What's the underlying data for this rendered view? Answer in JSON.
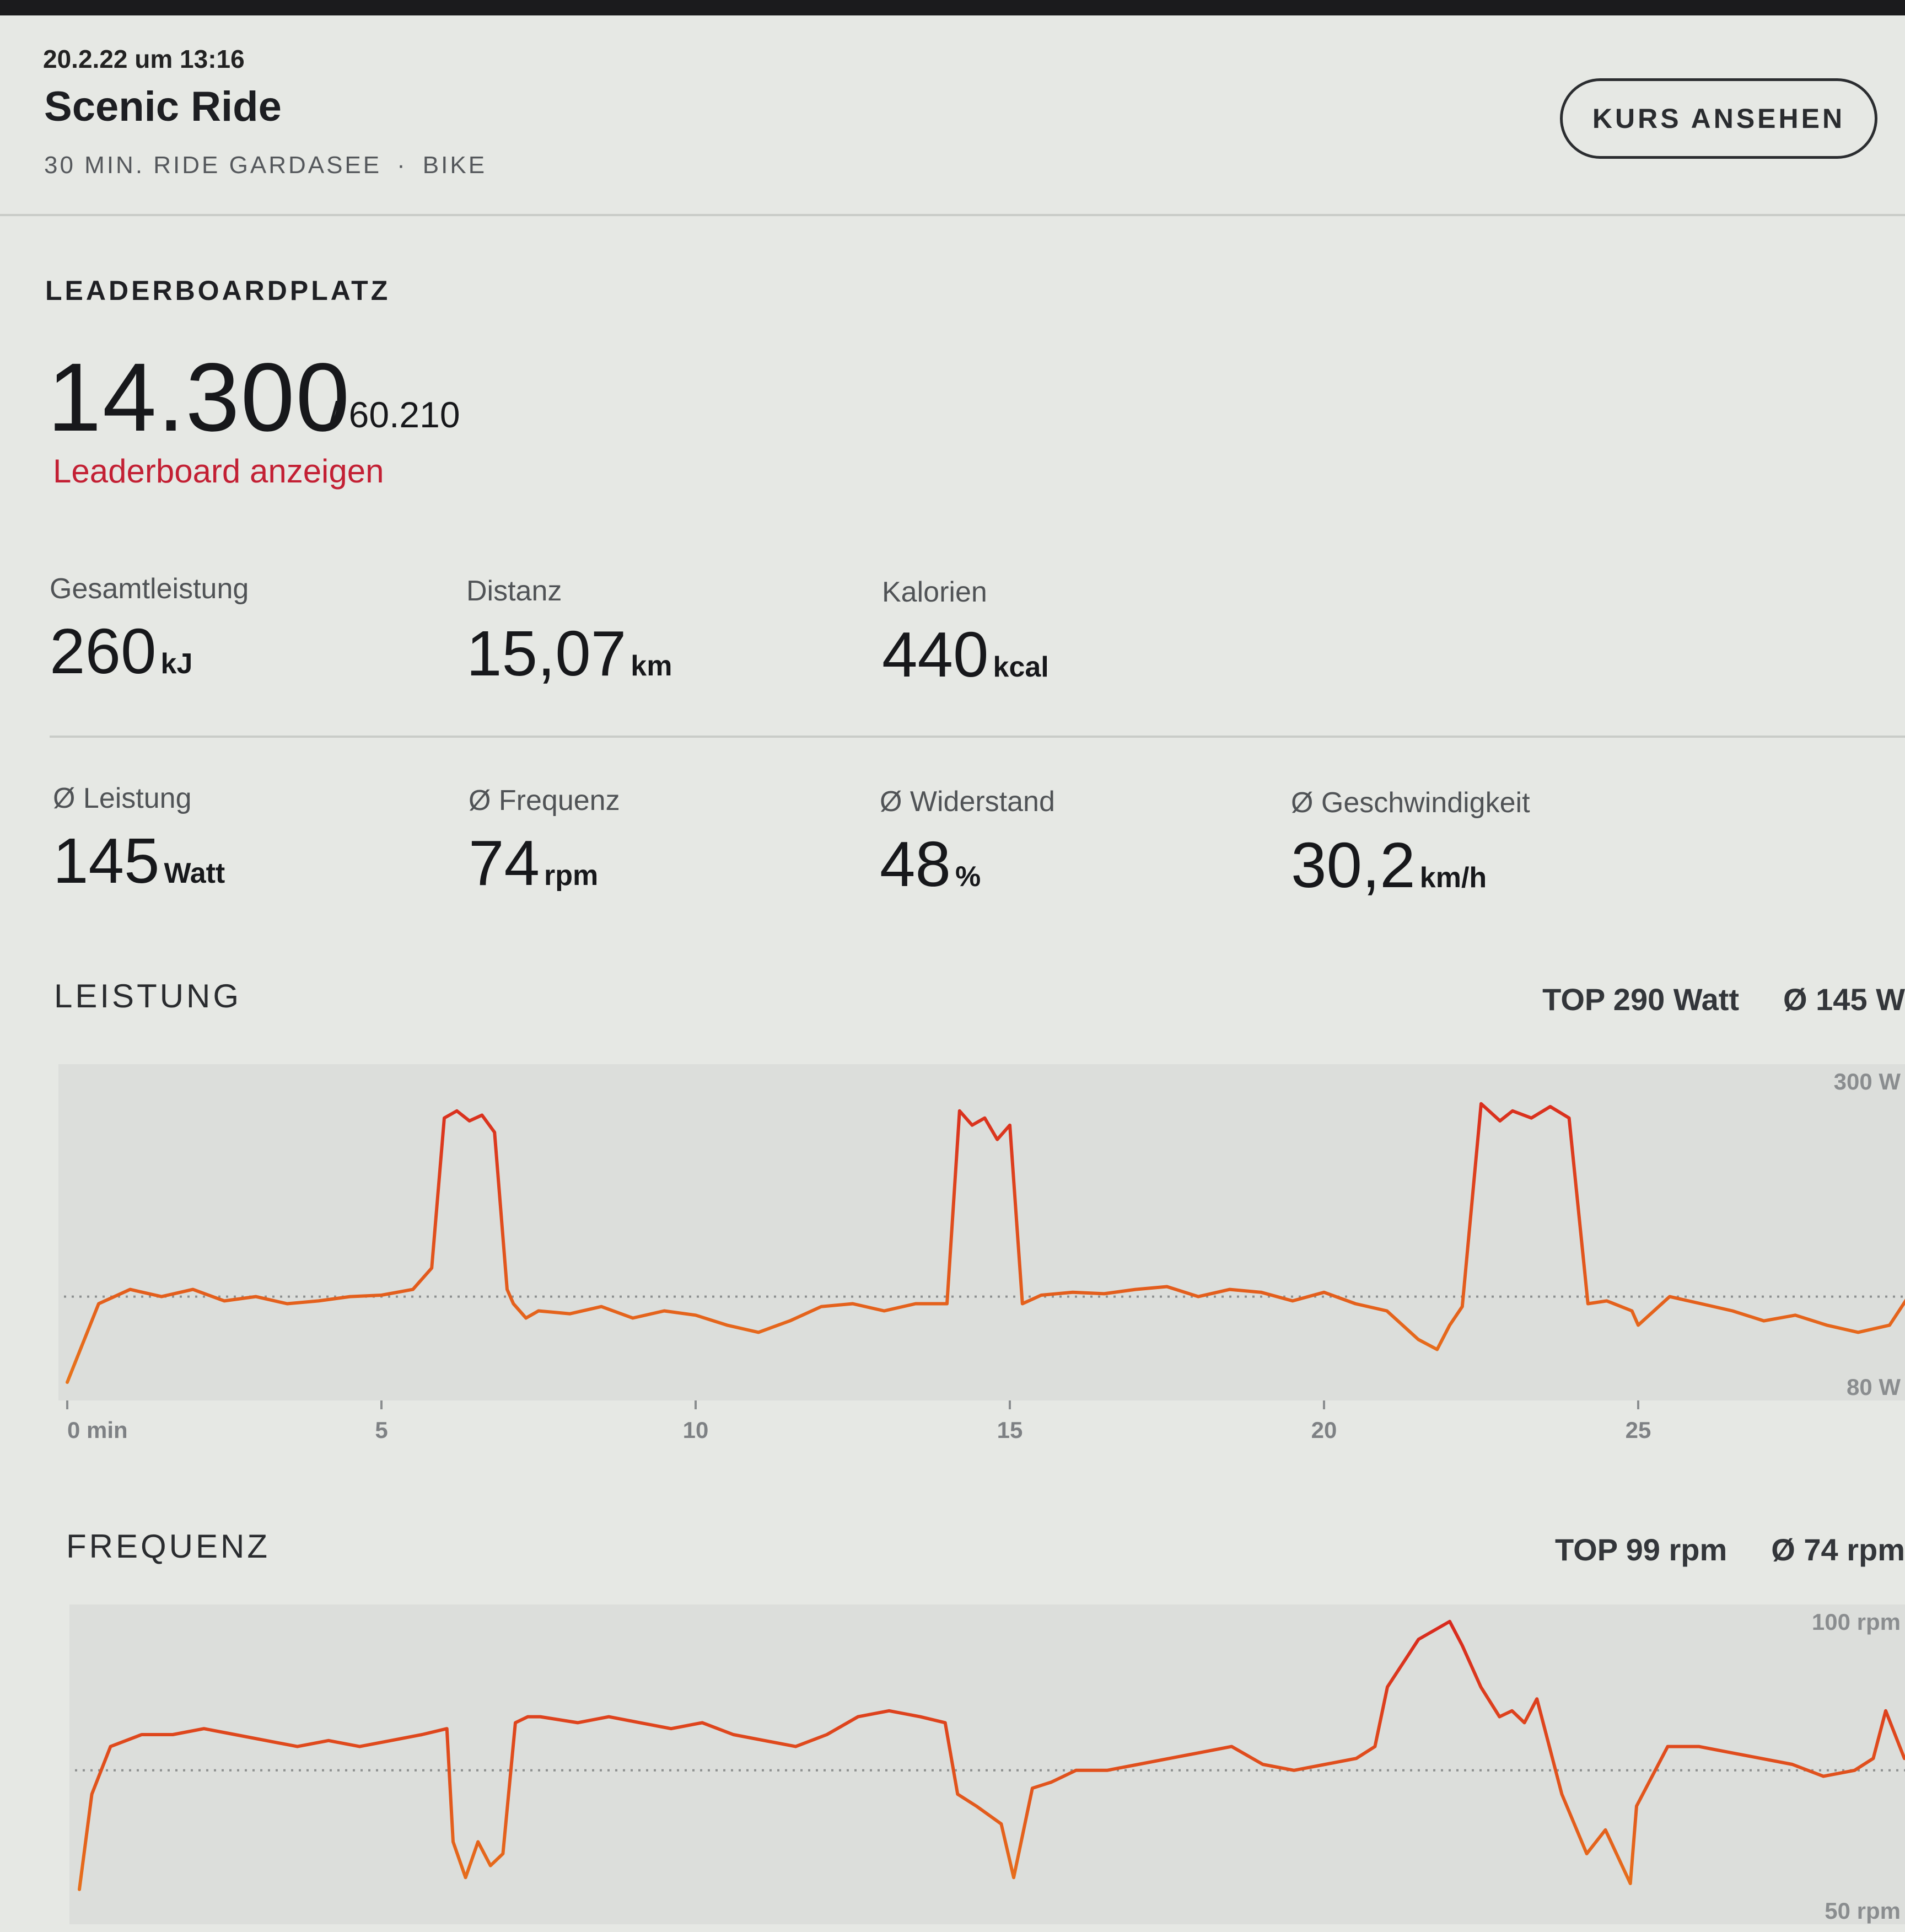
{
  "header": {
    "date": "20.2.22 um 13:16",
    "title": "Scenic Ride",
    "subtitle_course": "30 MIN. RIDE GARDASEE",
    "subtitle_separator": "·",
    "subtitle_type": "BIKE",
    "course_button_label": "KURS ANSEHEN"
  },
  "leaderboard": {
    "label": "LEADERBOARDPLATZ",
    "rank": "14.300",
    "total": "/ 60.210",
    "link_label": "Leaderboard anzeigen"
  },
  "totals": [
    {
      "label": "Gesamtleistung",
      "value": "260",
      "unit": "kJ"
    },
    {
      "label": "Distanz",
      "value": "15,07",
      "unit": "km"
    },
    {
      "label": "Kalorien",
      "value": "440",
      "unit": "kcal"
    }
  ],
  "averages": [
    {
      "label": "Ø Leistung",
      "value": "145",
      "unit": "Watt"
    },
    {
      "label": "Ø Frequenz",
      "value": "74",
      "unit": "rpm"
    },
    {
      "label": "Ø Widerstand",
      "value": "48",
      "unit": "%"
    },
    {
      "label": "Ø Geschwindigkeit",
      "value": "30,2",
      "unit": "km/h"
    }
  ],
  "colors": {
    "accent": "#c32034",
    "line_high": "#d8281e",
    "line_low": "#e8761c",
    "plot_bg": "#dcdedb"
  },
  "chart_data": [
    {
      "type": "line",
      "title": "LEISTUNG",
      "top_label": "TOP 290 Watt",
      "avg_label": "Ø 145 W",
      "ymax_label": "300 W",
      "ymin_label": "80 W",
      "ylim": [
        80,
        300
      ],
      "average": 145,
      "xlabel": "min",
      "x_ticks": [
        "0 min",
        "5",
        "10",
        "15",
        "20",
        "25"
      ],
      "x": [
        0,
        0.5,
        1,
        1.5,
        2,
        2.5,
        3,
        3.5,
        4,
        4.5,
        5,
        5.5,
        5.8,
        6,
        6.2,
        6.4,
        6.6,
        6.8,
        7,
        7.1,
        7.3,
        7.5,
        8,
        8.5,
        9,
        9.5,
        10,
        10.5,
        11,
        11.5,
        12,
        12.5,
        13,
        13.5,
        13.9,
        14,
        14.2,
        14.4,
        14.6,
        14.8,
        15,
        15.2,
        15.5,
        16,
        16.5,
        17,
        17.5,
        18,
        18.5,
        19,
        19.5,
        20,
        20.5,
        21,
        21.5,
        21.8,
        22,
        22.2,
        22.5,
        22.8,
        23,
        23.3,
        23.6,
        23.9,
        24.2,
        24.5,
        24.9,
        25,
        25.5,
        26,
        26.5,
        27,
        27.5,
        28,
        28.5,
        29,
        29.3
      ],
      "y": [
        85,
        140,
        150,
        145,
        150,
        142,
        145,
        140,
        142,
        145,
        146,
        150,
        165,
        270,
        275,
        268,
        272,
        260,
        150,
        140,
        130,
        135,
        133,
        138,
        130,
        135,
        132,
        125,
        120,
        128,
        138,
        140,
        135,
        140,
        140,
        140,
        275,
        265,
        270,
        255,
        265,
        140,
        146,
        148,
        147,
        150,
        152,
        145,
        150,
        148,
        142,
        148,
        140,
        135,
        115,
        108,
        125,
        138,
        280,
        268,
        275,
        270,
        278,
        270,
        140,
        142,
        135,
        125,
        145,
        140,
        135,
        128,
        132,
        125,
        120,
        125,
        145
      ]
    },
    {
      "type": "line",
      "title": "FREQUENZ",
      "top_label": "TOP 99 rpm",
      "avg_label": "Ø 74 rpm",
      "ymax_label": "100 rpm",
      "ymin_label": "50 rpm",
      "ylim": [
        50,
        100
      ],
      "average": 74,
      "xlabel": "min",
      "x": [
        0,
        0.2,
        0.5,
        1,
        1.5,
        2,
        2.5,
        3,
        3.5,
        4,
        4.5,
        5,
        5.5,
        5.9,
        6,
        6.2,
        6.4,
        6.6,
        6.8,
        7,
        7.2,
        7.4,
        8,
        8.5,
        9,
        9.5,
        10,
        10.5,
        11,
        11.5,
        12,
        12.5,
        13,
        13.5,
        13.9,
        14.1,
        14.4,
        14.8,
        15,
        15.3,
        15.6,
        16,
        16.5,
        17,
        17.5,
        18,
        18.5,
        19,
        19.5,
        20,
        20.5,
        20.8,
        21,
        21.5,
        22,
        22.2,
        22.5,
        22.8,
        23,
        23.2,
        23.4,
        23.8,
        24.2,
        24.5,
        24.9,
        25,
        25.5,
        26,
        26.5,
        27,
        27.5,
        28,
        28.5,
        28.8,
        29,
        29.3
      ],
      "y": [
        54,
        70,
        78,
        80,
        80,
        81,
        80,
        79,
        78,
        79,
        78,
        79,
        80,
        81,
        62,
        56,
        62,
        58,
        60,
        82,
        83,
        83,
        82,
        83,
        82,
        81,
        82,
        80,
        79,
        78,
        80,
        83,
        84,
        83,
        82,
        70,
        68,
        65,
        56,
        71,
        72,
        74,
        74,
        75,
        76,
        77,
        78,
        75,
        74,
        75,
        76,
        78,
        88,
        96,
        99,
        95,
        88,
        83,
        84,
        82,
        86,
        70,
        60,
        64,
        55,
        68,
        78,
        78,
        77,
        76,
        75,
        73,
        74,
        76,
        84,
        76
      ]
    }
  ]
}
